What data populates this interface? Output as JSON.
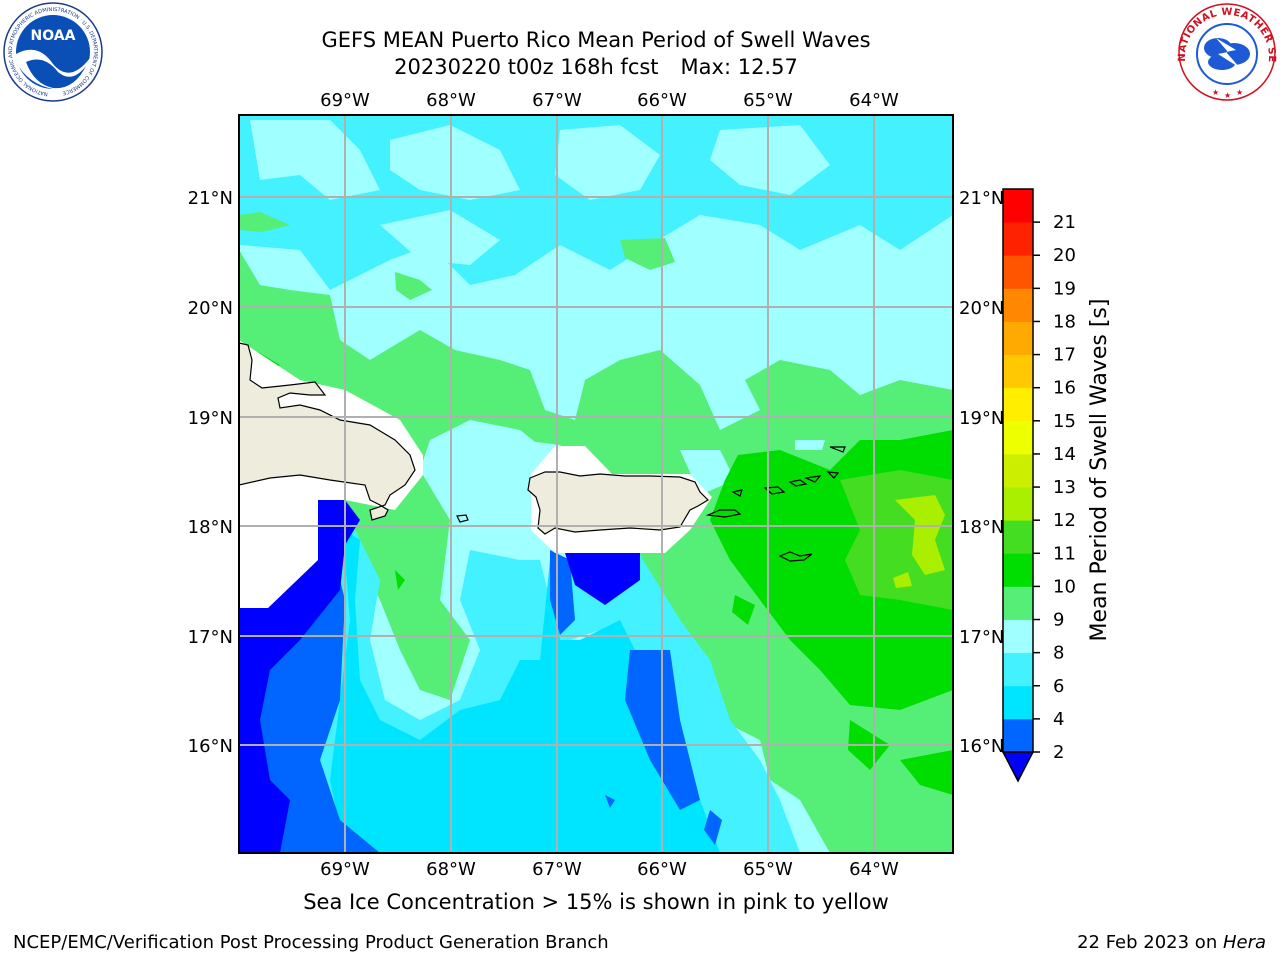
{
  "title": {
    "line1": "GEFS MEAN Puerto Rico Mean Period of Swell Waves",
    "line2_main": "20230220 t00z 168h fcst",
    "line2_max": "Max: 12.57"
  },
  "caption": "Sea Ice Concentration > 15% is shown in pink to yellow",
  "footer": {
    "left": "NCEP/EMC/Verification Post Processing Product Generation Branch",
    "date": "22 Feb 2023 on ",
    "host": "Hera"
  },
  "logos": {
    "noaa": {
      "text": "NOAA",
      "ring_text": "NATIONAL OCEANIC AND ATMOSPHERIC ADMINISTRATION · U.S. DEPARTMENT OF COMMERCE"
    },
    "nws": {
      "ring_text": "NATIONAL WEATHER SERVICE"
    }
  },
  "map": {
    "lon_labels": [
      "69°W",
      "68°W",
      "67°W",
      "66°W",
      "65°W",
      "64°W"
    ],
    "lat_labels": [
      "21°N",
      "20°N",
      "19°N",
      "18°N",
      "17°N",
      "16°N"
    ],
    "land_color": "#eeecdc",
    "grid_color": "#b0b0b0",
    "max_value": 12.57
  },
  "colorbar": {
    "label": "Mean Period of Swell Waves [s]",
    "ticks": [
      "2",
      "4",
      "6",
      "8",
      "9",
      "10",
      "11",
      "12",
      "13",
      "14",
      "15",
      "16",
      "17",
      "18",
      "19",
      "20",
      "21"
    ],
    "colors": [
      "#0066ff",
      "#00e5ff",
      "#44f2ff",
      "#a0ffff",
      "#55ee77",
      "#00dd00",
      "#44dd22",
      "#aaee00",
      "#ccee00",
      "#eeff00",
      "#ffee00",
      "#ffc800",
      "#ffaa00",
      "#ff8800",
      "#ff5500",
      "#ff2200",
      "#ff0000"
    ],
    "under_color": "#0000ff"
  }
}
